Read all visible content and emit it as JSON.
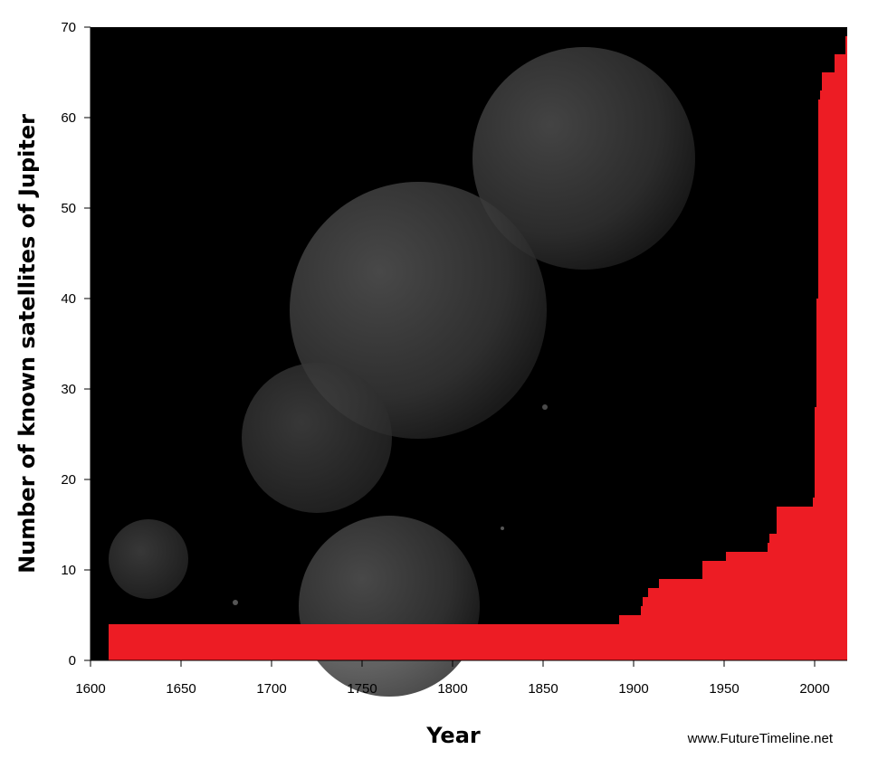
{
  "chart_data": {
    "type": "area",
    "step": true,
    "xlabel": "Year",
    "ylabel": "Number of known satellites of Jupiter",
    "xlim": [
      1600,
      2018
    ],
    "ylim": [
      0,
      70
    ],
    "x_ticks": [
      1600,
      1650,
      1700,
      1750,
      1800,
      1850,
      1900,
      1950,
      2000
    ],
    "y_ticks": [
      0,
      10,
      20,
      30,
      40,
      50,
      60,
      70
    ],
    "series": [
      {
        "x": [
          1610,
          1892,
          1904,
          1905,
          1908,
          1914,
          1938,
          1951,
          1974,
          1975,
          1979,
          1999,
          2000,
          2001,
          2002,
          2003,
          2004,
          2011,
          2017,
          2018
        ],
        "y": [
          4,
          5,
          6,
          7,
          8,
          9,
          11,
          12,
          13,
          14,
          17,
          18,
          28,
          40,
          62,
          63,
          65,
          67,
          69,
          69
        ]
      }
    ],
    "fill_color": "#ed1c24",
    "background_color": "#000000",
    "background_image": "Jupiter's moons",
    "grid": false
  },
  "credit": "www.FutureTimeline.net"
}
